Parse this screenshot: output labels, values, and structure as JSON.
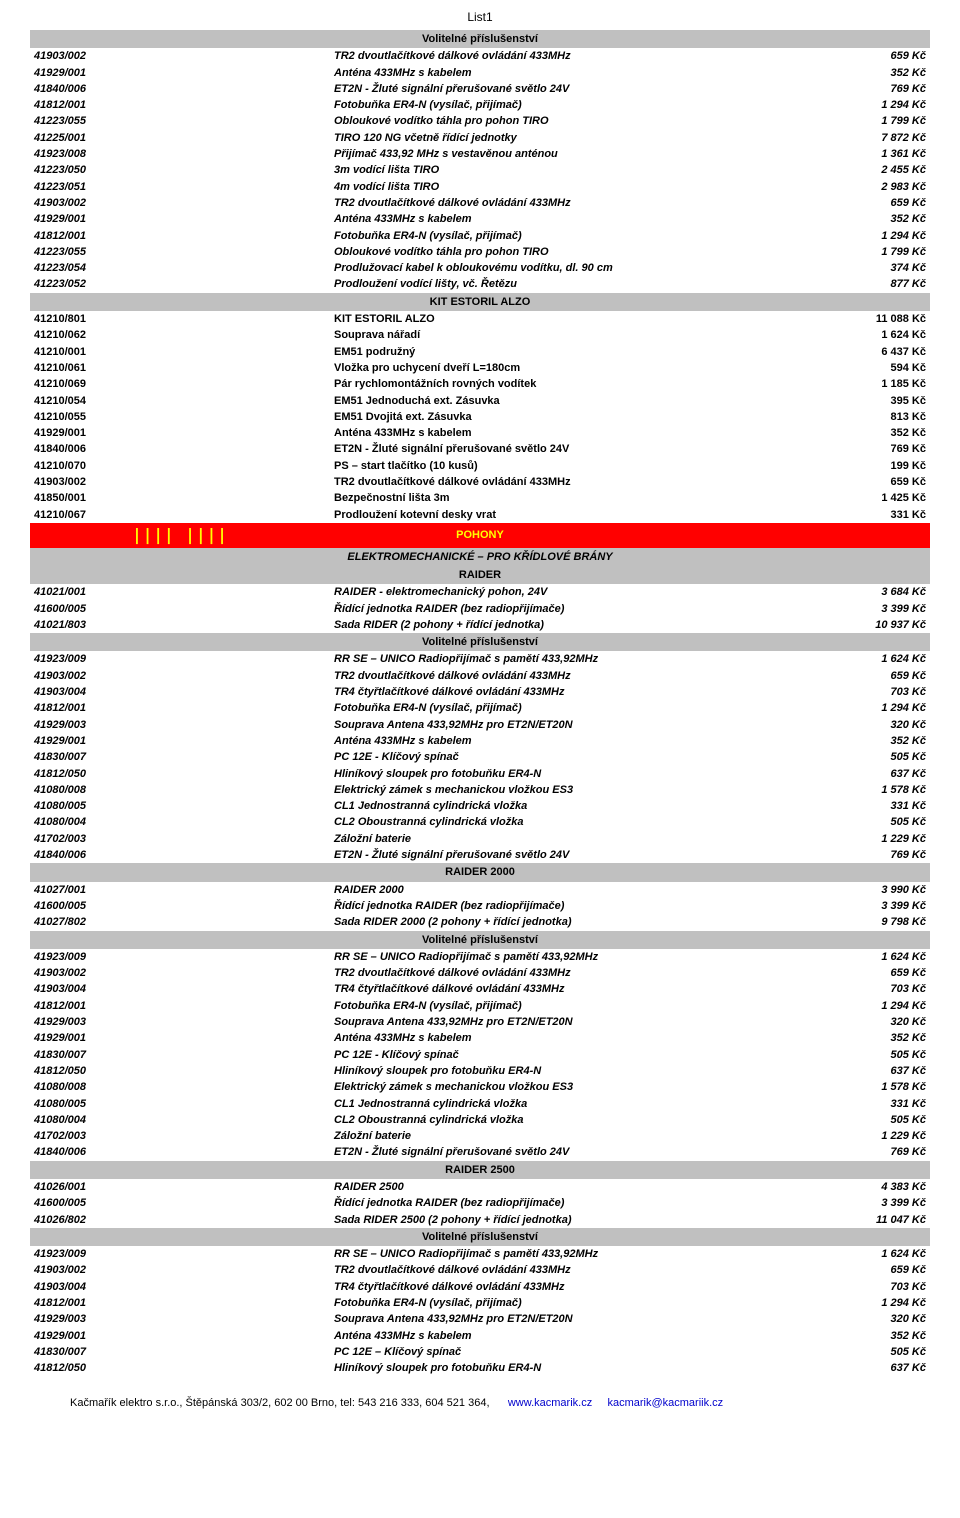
{
  "page_title": "List1",
  "footer": {
    "company": "Kačmařík elektro s.r.o., Štěpánská 303/2, 602 00 Brno, tel: 543 216 333, 604 521 364,",
    "url": "www.kacmarik.cz",
    "email": "kacmarik@kacmariik.cz"
  },
  "sections": [
    {
      "type": "header",
      "label": "Volitelné příslušenství"
    },
    {
      "type": "row",
      "style": "italic",
      "code": "41903/002",
      "desc": "TR2 dvoutlačítkové dálkové ovládání 433MHz",
      "price": "659 Kč"
    },
    {
      "type": "row",
      "style": "italic",
      "code": "41929/001",
      "desc": "Anténa 433MHz s kabelem",
      "price": "352 Kč"
    },
    {
      "type": "row",
      "style": "italic",
      "code": "41840/006",
      "desc": "ET2N - Žluté signální přerušované světlo 24V",
      "price": "769 Kč"
    },
    {
      "type": "row",
      "style": "italic",
      "code": "41812/001",
      "desc": "Fotobuňka ER4-N (vysílač, přijímač)",
      "price": "1 294 Kč"
    },
    {
      "type": "row",
      "style": "italic",
      "code": "41223/055",
      "desc": "Obloukové vodítko táhla pro pohon TIRO",
      "price": "1 799 Kč"
    },
    {
      "type": "row",
      "style": "italic",
      "code": "41225/001",
      "desc": "TIRO 120 NG včetně řídící jednotky",
      "price": "7 872 Kč"
    },
    {
      "type": "row",
      "style": "italic",
      "code": "41923/008",
      "desc": "Přijímač 433,92 MHz s vestavěnou anténou",
      "price": "1 361 Kč"
    },
    {
      "type": "row",
      "style": "italic",
      "code": "41223/050",
      "desc": "3m vodící lišta TIRO",
      "price": "2 455 Kč"
    },
    {
      "type": "row",
      "style": "italic",
      "code": "41223/051",
      "desc": "4m vodící lišta TIRO",
      "price": "2 983 Kč"
    },
    {
      "type": "row",
      "style": "italic",
      "code": "41903/002",
      "desc": "TR2 dvoutlačítkové dálkové ovládání 433MHz",
      "price": "659 Kč"
    },
    {
      "type": "row",
      "style": "italic",
      "code": "41929/001",
      "desc": "Anténa 433MHz s kabelem",
      "price": "352 Kč"
    },
    {
      "type": "row",
      "style": "italic",
      "code": "41812/001",
      "desc": "Fotobuňka ER4-N (vysílač, přijímač)",
      "price": "1 294 Kč"
    },
    {
      "type": "row",
      "style": "italic",
      "code": "41223/055",
      "desc": "Obloukové vodítko táhla pro pohon TIRO",
      "price": "1 799 Kč"
    },
    {
      "type": "row",
      "style": "italic",
      "code": "41223/054",
      "desc": "Prodlužovací kabel k obloukovému vodítku, dl. 90 cm",
      "price": "374 Kč"
    },
    {
      "type": "row",
      "style": "italic",
      "code": "41223/052",
      "desc": "Prodloužení vodící lišty, vč. Řetězu",
      "price": "877 Kč"
    },
    {
      "type": "header",
      "label": "KIT ESTORIL ALZO"
    },
    {
      "type": "row",
      "style": "normal",
      "code": "41210/801",
      "desc": "KIT ESTORIL ALZO",
      "price": "11 088 Kč"
    },
    {
      "type": "row",
      "style": "normal",
      "code": "41210/062",
      "desc": "Souprava nářadí",
      "price": "1 624 Kč"
    },
    {
      "type": "row",
      "style": "normal",
      "code": "41210/001",
      "desc": "EM51 podružný",
      "price": "6 437 Kč"
    },
    {
      "type": "row",
      "style": "normal",
      "code": "41210/061",
      "desc": "Vložka pro uchycení dveří L=180cm",
      "price": "594 Kč"
    },
    {
      "type": "row",
      "style": "normal",
      "code": "41210/069",
      "desc": "Pár rychlomontážních rovných vodítek",
      "price": "1 185 Kč"
    },
    {
      "type": "row",
      "style": "normal",
      "code": "41210/054",
      "desc": "EM51 Jednoduchá ext. Zásuvka",
      "price": "395 Kč"
    },
    {
      "type": "row",
      "style": "normal",
      "code": "41210/055",
      "desc": "EM51 Dvojitá ext. Zásuvka",
      "price": "813 Kč"
    },
    {
      "type": "row",
      "style": "normal",
      "code": "41929/001",
      "desc": "Anténa 433MHz s kabelem",
      "price": "352 Kč"
    },
    {
      "type": "row",
      "style": "normal",
      "code": "41840/006",
      "desc": "ET2N - Žluté signální přerušované světlo 24V",
      "price": "769 Kč"
    },
    {
      "type": "row",
      "style": "normal",
      "code": "41210/070",
      "desc": "PS – start tlačítko (10 kusů)",
      "price": "199 Kč"
    },
    {
      "type": "row",
      "style": "normal",
      "code": "41903/002",
      "desc": "TR2 dvoutlačítkové dálkové ovládání 433MHz",
      "price": "659 Kč"
    },
    {
      "type": "row",
      "style": "normal",
      "code": "41850/001",
      "desc": "Bezpečnostní lišta 3m",
      "price": "1 425 Kč"
    },
    {
      "type": "row",
      "style": "normal",
      "code": "41210/067",
      "desc": "Prodloužení kotevní desky vrat",
      "price": "331 Kč"
    },
    {
      "type": "pohony",
      "label": "POHONY"
    },
    {
      "type": "subheader",
      "label": "ELEKTROMECHANICKÉ – PRO KŘÍDLOVÉ BRÁNY"
    },
    {
      "type": "header",
      "label": "RAIDER"
    },
    {
      "type": "row",
      "style": "italic",
      "code": "41021/001",
      "desc": "RAIDER - elektromechanický pohon, 24V",
      "price": "3 684 Kč"
    },
    {
      "type": "row",
      "style": "italic",
      "code": "41600/005",
      "desc": "Řídící jednotka RAIDER (bez radiopřijímače)",
      "price": "3 399 Kč"
    },
    {
      "type": "row",
      "style": "italic",
      "code": "41021/803",
      "desc": "Sada RIDER (2 pohony + řídící jednotka)",
      "price": "10 937 Kč"
    },
    {
      "type": "header",
      "label": "Volitelné příslušenství"
    },
    {
      "type": "row",
      "style": "italic",
      "code": "41923/009",
      "desc": "RR SE – UNICO Radiopřijímač s pamětí 433,92MHz",
      "price": "1 624 Kč"
    },
    {
      "type": "row",
      "style": "italic",
      "code": "41903/002",
      "desc": "TR2 dvoutlačítkové dálkové ovládání 433MHz",
      "price": "659 Kč"
    },
    {
      "type": "row",
      "style": "italic",
      "code": "41903/004",
      "desc": "TR4 čtyřtlačítkové dálkové ovládání 433MHz",
      "price": "703 Kč"
    },
    {
      "type": "row",
      "style": "italic",
      "code": "41812/001",
      "desc": "Fotobuňka ER4-N (vysílač, přijímač)",
      "price": "1 294 Kč"
    },
    {
      "type": "row",
      "style": "italic",
      "code": "41929/003",
      "desc": "Souprava Antena 433,92MHz pro ET2N/ET20N",
      "price": "320 Kč"
    },
    {
      "type": "row",
      "style": "italic",
      "code": "41929/001",
      "desc": "Anténa 433MHz s kabelem",
      "price": "352 Kč"
    },
    {
      "type": "row",
      "style": "italic",
      "code": "41830/007",
      "desc": "PC 12E - Klíčový spínač",
      "price": "505 Kč"
    },
    {
      "type": "row",
      "style": "italic",
      "code": "41812/050",
      "desc": "Hliníkový sloupek pro fotobuňku ER4-N",
      "price": "637 Kč"
    },
    {
      "type": "row",
      "style": "italic",
      "code": "41080/008",
      "desc": "Elektrický zámek s mechanickou vložkou ES3",
      "price": "1 578 Kč"
    },
    {
      "type": "row",
      "style": "italic",
      "code": "41080/005",
      "desc": "CL1 Jednostranná cylindrická vložka",
      "price": "331 Kč"
    },
    {
      "type": "row",
      "style": "italic",
      "code": "41080/004",
      "desc": "CL2 Oboustranná cylindrická vložka",
      "price": "505 Kč"
    },
    {
      "type": "row",
      "style": "italic",
      "code": "41702/003",
      "desc": "Záložní baterie",
      "price": "1 229 Kč"
    },
    {
      "type": "row",
      "style": "italic",
      "code": "41840/006",
      "desc": "ET2N - Žluté signální přerušované světlo 24V",
      "price": "769 Kč"
    },
    {
      "type": "header",
      "label": "RAIDER 2000"
    },
    {
      "type": "row",
      "style": "italic",
      "code": "41027/001",
      "desc": "RAIDER 2000",
      "price": "3 990 Kč"
    },
    {
      "type": "row",
      "style": "italic",
      "code": "41600/005",
      "desc": "Řídící jednotka RAIDER (bez radiopřijímače)",
      "price": "3 399 Kč"
    },
    {
      "type": "row",
      "style": "italic",
      "code": "41027/802",
      "desc": "Sada RIDER 2000 (2 pohony + řídící jednotka)",
      "price": "9 798 Kč"
    },
    {
      "type": "header",
      "label": "Volitelné příslušenství"
    },
    {
      "type": "row",
      "style": "italic",
      "code": "41923/009",
      "desc": "RR SE – UNICO Radiopřijímač s pamětí 433,92MHz",
      "price": "1 624 Kč"
    },
    {
      "type": "row",
      "style": "italic",
      "code": "41903/002",
      "desc": "TR2 dvoutlačítkové dálkové ovládání 433MHz",
      "price": "659 Kč"
    },
    {
      "type": "row",
      "style": "italic",
      "code": "41903/004",
      "desc": "TR4 čtyřtlačítkové dálkové ovládání 433MHz",
      "price": "703 Kč"
    },
    {
      "type": "row",
      "style": "italic",
      "code": "41812/001",
      "desc": "Fotobuňka ER4-N (vysílač, přijímač)",
      "price": "1 294 Kč"
    },
    {
      "type": "row",
      "style": "italic",
      "code": "41929/003",
      "desc": "Souprava Antena 433,92MHz pro ET2N/ET20N",
      "price": "320 Kč"
    },
    {
      "type": "row",
      "style": "italic",
      "code": "41929/001",
      "desc": "Anténa 433MHz s kabelem",
      "price": "352 Kč"
    },
    {
      "type": "row",
      "style": "italic",
      "code": "41830/007",
      "desc": "PC 12E - Klíčový spínač",
      "price": "505 Kč"
    },
    {
      "type": "row",
      "style": "italic",
      "code": "41812/050",
      "desc": "Hliníkový sloupek pro fotobuňku ER4-N",
      "price": "637 Kč"
    },
    {
      "type": "row",
      "style": "italic",
      "code": "41080/008",
      "desc": "Elektrický zámek s mechanickou vložkou ES3",
      "price": "1 578 Kč"
    },
    {
      "type": "row",
      "style": "italic",
      "code": "41080/005",
      "desc": "CL1 Jednostranná cylindrická vložka",
      "price": "331 Kč"
    },
    {
      "type": "row",
      "style": "italic",
      "code": "41080/004",
      "desc": "CL2 Oboustranná cylindrická vložka",
      "price": "505 Kč"
    },
    {
      "type": "row",
      "style": "italic",
      "code": "41702/003",
      "desc": "Záložní baterie",
      "price": "1 229 Kč"
    },
    {
      "type": "row",
      "style": "italic",
      "code": "41840/006",
      "desc": "ET2N - Žluté signální přerušované světlo 24V",
      "price": "769 Kč"
    },
    {
      "type": "header",
      "label": "RAIDER 2500"
    },
    {
      "type": "row",
      "style": "italic",
      "code": "41026/001",
      "desc": "RAIDER 2500",
      "price": "4 383 Kč"
    },
    {
      "type": "row",
      "style": "italic",
      "code": "41600/005",
      "desc": "Řídící jednotka RAIDER (bez radiopřijímače)",
      "price": "3 399 Kč"
    },
    {
      "type": "row",
      "style": "italic",
      "code": "41026/802",
      "desc": "Sada RIDER 2500 (2 pohony + řídící jednotka)",
      "price": "11 047 Kč"
    },
    {
      "type": "header",
      "label": "Volitelné příslušenství"
    },
    {
      "type": "row",
      "style": "italic",
      "code": "41923/009",
      "desc": "RR SE – UNICO Radiopřijímač s pamětí 433,92MHz",
      "price": "1 624 Kč"
    },
    {
      "type": "row",
      "style": "italic",
      "code": "41903/002",
      "desc": "TR2 dvoutlačítkové dálkové ovládání 433MHz",
      "price": "659 Kč"
    },
    {
      "type": "row",
      "style": "italic",
      "code": "41903/004",
      "desc": "TR4 čtyřtlačítkové dálkové ovládání 433MHz",
      "price": "703 Kč"
    },
    {
      "type": "row",
      "style": "italic",
      "code": "41812/001",
      "desc": "Fotobuňka ER4-N (vysílač, přijímač)",
      "price": "1 294 Kč"
    },
    {
      "type": "row",
      "style": "italic",
      "code": "41929/003",
      "desc": "Souprava Antena 433,92MHz pro ET2N/ET20N",
      "price": "320 Kč"
    },
    {
      "type": "row",
      "style": "italic",
      "code": "41929/001",
      "desc": "Anténa 433MHz s kabelem",
      "price": "352 Kč"
    },
    {
      "type": "row",
      "style": "italic",
      "code": "41830/007",
      "desc": "PC 12E – Klíčový spínač",
      "price": "505 Kč"
    },
    {
      "type": "row",
      "style": "italic",
      "code": "41812/050",
      "desc": "Hliníkový sloupek pro fotobuňku ER4-N",
      "price": "637 Kč"
    }
  ]
}
